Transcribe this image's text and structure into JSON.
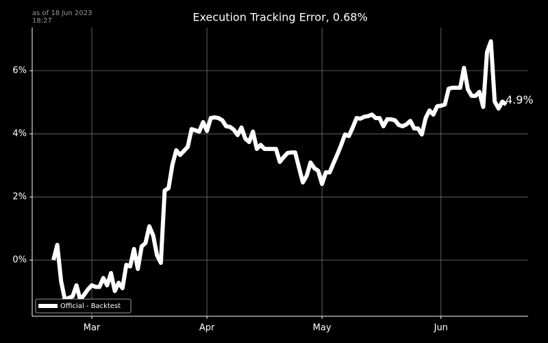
{
  "chart_data": {
    "type": "line",
    "title": "Execution Tracking Error, 0.68%",
    "note": [
      "as of 18 Jun 2023",
      "18:27"
    ],
    "categories": [
      null,
      null,
      null,
      null,
      null,
      null,
      null,
      null,
      null,
      null,
      "Mar",
      null,
      null,
      null,
      null,
      null,
      null,
      null,
      null,
      null,
      null,
      null,
      null,
      null,
      null,
      null,
      null,
      null,
      null,
      null,
      null,
      null,
      null,
      null,
      null,
      null,
      null,
      null,
      null,
      null,
      "Apr",
      null,
      null,
      null,
      null,
      null,
      null,
      null,
      null,
      null,
      null,
      null,
      null,
      null,
      null,
      null,
      null,
      null,
      null,
      null,
      null,
      null,
      null,
      null,
      null,
      null,
      null,
      null,
      null,
      null,
      "May",
      null,
      null,
      null,
      null,
      null,
      null,
      null,
      null,
      null,
      null,
      null,
      null,
      null,
      null,
      null,
      null,
      null,
      null,
      null,
      null,
      null,
      null,
      null,
      null,
      null,
      null,
      null,
      null,
      null,
      null,
      "Jun",
      null,
      null,
      null,
      null,
      null,
      null,
      null,
      null,
      null,
      null,
      null,
      null,
      null,
      null,
      null,
      null,
      null
    ],
    "series": [
      {
        "name": "Official - Backtest",
        "color": "#ffffff",
        "values": [
          0,
          0.48,
          -0.67,
          -1.26,
          -1.2,
          -1.15,
          -0.8,
          -1.26,
          -1.1,
          -0.93,
          -0.8,
          -0.85,
          -0.85,
          -0.57,
          -0.8,
          -0.41,
          -0.98,
          -0.72,
          -0.89,
          -0.15,
          -0.2,
          0.35,
          -0.28,
          0.43,
          0.54,
          1.07,
          0.78,
          0.15,
          -0.09,
          2.2,
          2.28,
          3.02,
          3.48,
          3.33,
          3.46,
          3.59,
          4.15,
          4.11,
          4.07,
          4.37,
          4.09,
          4.5,
          4.52,
          4.5,
          4.43,
          4.24,
          4.22,
          4.13,
          3.96,
          4.2,
          3.85,
          3.74,
          4.07,
          3.52,
          3.65,
          3.52,
          3.52,
          3.52,
          3.52,
          3.11,
          3.26,
          3.39,
          3.41,
          3.41,
          2.93,
          2.46,
          2.67,
          3.09,
          2.91,
          2.83,
          2.41,
          2.78,
          2.78,
          3.07,
          3.35,
          3.65,
          3.98,
          3.93,
          4.2,
          4.5,
          4.48,
          4.54,
          4.56,
          4.61,
          4.5,
          4.5,
          4.24,
          4.46,
          4.46,
          4.43,
          4.28,
          4.24,
          4.3,
          4.41,
          4.17,
          4.17,
          3.98,
          4.5,
          4.74,
          4.61,
          4.87,
          4.89,
          4.93,
          5.43,
          5.46,
          5.46,
          5.46,
          6.09,
          5.41,
          5.2,
          5.2,
          5.33,
          4.85,
          6.59,
          6.93,
          5.02,
          4.8,
          5.02,
          4.93
        ],
        "value_labels": [
          null,
          null,
          null,
          null,
          null,
          null,
          null,
          null,
          null,
          null,
          null,
          null,
          null,
          null,
          null,
          null,
          null,
          null,
          null,
          null,
          null,
          null,
          null,
          null,
          null,
          null,
          null,
          null,
          null,
          null,
          null,
          null,
          null,
          null,
          null,
          null,
          null,
          null,
          null,
          null,
          null,
          null,
          null,
          null,
          null,
          null,
          null,
          null,
          null,
          null,
          null,
          null,
          null,
          null,
          null,
          null,
          null,
          null,
          null,
          null,
          null,
          null,
          null,
          null,
          null,
          null,
          null,
          null,
          null,
          null,
          null,
          null,
          null,
          null,
          null,
          null,
          null,
          null,
          null,
          null,
          null,
          null,
          null,
          null,
          null,
          null,
          null,
          null,
          null,
          null,
          null,
          null,
          null,
          null,
          null,
          null,
          null,
          null,
          null,
          null,
          null,
          null,
          null,
          null,
          null,
          null,
          null,
          null,
          null,
          null,
          null,
          null,
          null,
          null,
          null,
          null,
          null,
          null,
          "4.9%"
        ]
      }
    ],
    "ylim": [
      -1.78,
      7.37
    ],
    "yticks": [
      {
        "value": 0,
        "label": "0%"
      },
      {
        "value": 2,
        "label": "2%"
      },
      {
        "value": 4,
        "label": "4%"
      },
      {
        "value": 6,
        "label": "6%"
      }
    ],
    "grid": true,
    "legend": "lower left"
  }
}
